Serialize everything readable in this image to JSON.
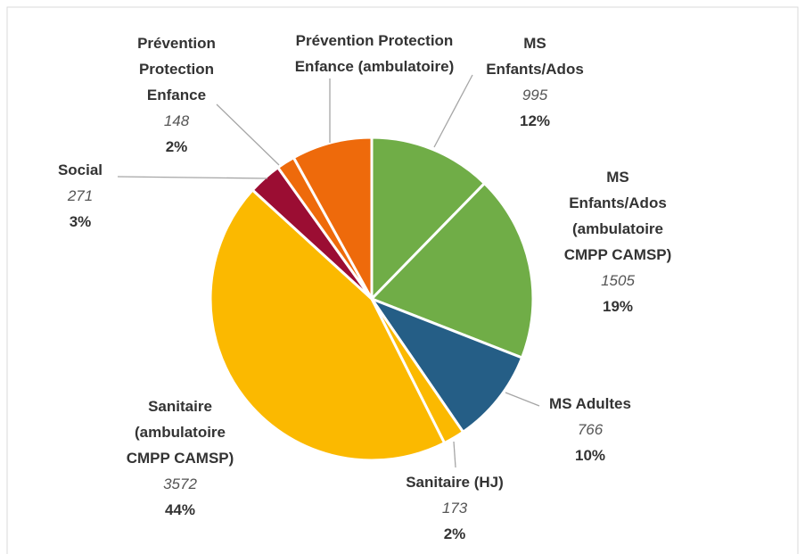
{
  "chart_data": {
    "type": "pie",
    "categories": [
      "MS Enfants/Ados",
      "MS Enfants/Ados (ambulatoire CMPP CAMSP)",
      "MS Adultes",
      "Sanitaire (HJ)",
      "Sanitaire (ambulatoire CMPP CAMSP)",
      "Social",
      "Prévention Protection Enfance",
      "Prévention Protection Enfance (ambulatoire)"
    ],
    "values": [
      995,
      1505,
      766,
      173,
      3572,
      271,
      148,
      650
    ],
    "value_labels": [
      "995",
      "1505",
      "766",
      "173",
      "3572",
      "271",
      "148",
      null
    ],
    "percent_labels": [
      "12%",
      "19%",
      "10%",
      "2%",
      "44%",
      "3%",
      "2%",
      null
    ],
    "colors": [
      "#70ad47",
      "#70ad47",
      "#255e86",
      "#fbb900",
      "#fbb900",
      "#9b0d33",
      "#ee6a0b",
      "#ee6a0b"
    ]
  }
}
